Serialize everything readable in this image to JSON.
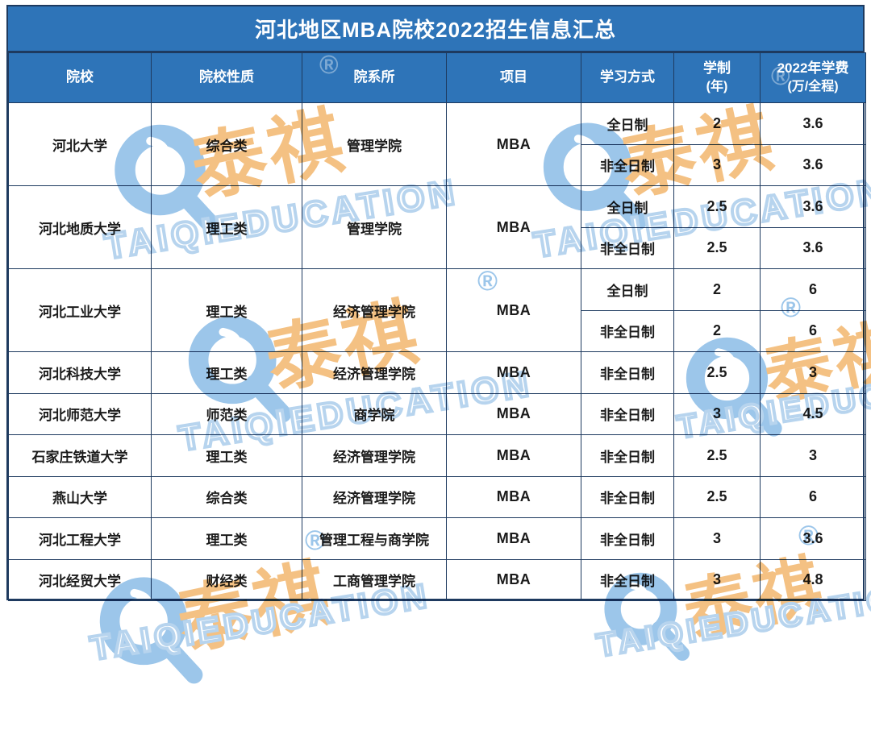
{
  "title": "河北地区MBA院校2022招生信息汇总",
  "watermark": {
    "cn": "泰祺",
    "en": "TAIQIEDUCATION",
    "reg": "®"
  },
  "colors": {
    "header_blue": "#2E74B8",
    "border_dark": "#1E3A5F",
    "body_text": "#1B1B1B",
    "watermark_orange": "#F4C183",
    "watermark_blue": "#9CC6EA",
    "watermark_en_stroke": "#B7D4EE"
  },
  "table": {
    "columns": [
      {
        "label": "院校"
      },
      {
        "label": "院校性质"
      },
      {
        "label": "院系所"
      },
      {
        "label": "项目"
      },
      {
        "label": "学习方式"
      },
      {
        "label": "学制",
        "sub": "(年)"
      },
      {
        "label": "2022年学费",
        "sub": "(万/全程)"
      }
    ],
    "schools": [
      {
        "name": "河北大学",
        "type": "综合类",
        "dept": "管理学院",
        "program": "MBA",
        "modes": [
          {
            "mode": "全日制",
            "years": "2",
            "fee": "3.6"
          },
          {
            "mode": "非全日制",
            "years": "3",
            "fee": "3.6"
          }
        ]
      },
      {
        "name": "河北地质大学",
        "type": "理工类",
        "dept": "管理学院",
        "program": "MBA",
        "modes": [
          {
            "mode": "全日制",
            "years": "2.5",
            "fee": "3.6"
          },
          {
            "mode": "非全日制",
            "years": "2.5",
            "fee": "3.6"
          }
        ]
      },
      {
        "name": "河北工业大学",
        "type": "理工类",
        "dept": "经济管理学院",
        "program": "MBA",
        "modes": [
          {
            "mode": "全日制",
            "years": "2",
            "fee": "6"
          },
          {
            "mode": "非全日制",
            "years": "2",
            "fee": "6"
          }
        ]
      },
      {
        "name": "河北科技大学",
        "type": "理工类",
        "dept": "经济管理学院",
        "program": "MBA",
        "modes": [
          {
            "mode": "非全日制",
            "years": "2.5",
            "fee": "3"
          }
        ]
      },
      {
        "name": "河北师范大学",
        "type": "师范类",
        "dept": "商学院",
        "program": "MBA",
        "modes": [
          {
            "mode": "非全日制",
            "years": "3",
            "fee": "4.5"
          }
        ]
      },
      {
        "name": "石家庄铁道大学",
        "type": "理工类",
        "dept": "经济管理学院",
        "program": "MBA",
        "modes": [
          {
            "mode": "非全日制",
            "years": "2.5",
            "fee": "3"
          }
        ]
      },
      {
        "name": "燕山大学",
        "type": "综合类",
        "dept": "经济管理学院",
        "program": "MBA",
        "modes": [
          {
            "mode": "非全日制",
            "years": "2.5",
            "fee": "6"
          }
        ]
      },
      {
        "name": "河北工程大学",
        "type": "理工类",
        "dept": "管理工程与商学院",
        "program": "MBA",
        "modes": [
          {
            "mode": "非全日制",
            "years": "3",
            "fee": "3.6"
          }
        ]
      },
      {
        "name": "河北经贸大学",
        "type": "财经类",
        "dept": "工商管理学院",
        "program": "MBA",
        "modes": [
          {
            "mode": "非全日制",
            "years": "3",
            "fee": "4.8"
          }
        ]
      }
    ]
  },
  "chart_data": {
    "type": "table",
    "title": "河北地区MBA院校2022招生信息汇总",
    "columns": [
      "院校",
      "院校性质",
      "院系所",
      "项目",
      "学习方式",
      "学制(年)",
      "2022年学费(万/全程)"
    ],
    "rows": [
      [
        "河北大学",
        "综合类",
        "管理学院",
        "MBA",
        "全日制",
        "2",
        "3.6"
      ],
      [
        "河北大学",
        "综合类",
        "管理学院",
        "MBA",
        "非全日制",
        "3",
        "3.6"
      ],
      [
        "河北地质大学",
        "理工类",
        "管理学院",
        "MBA",
        "全日制",
        "2.5",
        "3.6"
      ],
      [
        "河北地质大学",
        "理工类",
        "管理学院",
        "MBA",
        "非全日制",
        "2.5",
        "3.6"
      ],
      [
        "河北工业大学",
        "理工类",
        "经济管理学院",
        "MBA",
        "全日制",
        "2",
        "6"
      ],
      [
        "河北工业大学",
        "理工类",
        "经济管理学院",
        "MBA",
        "非全日制",
        "2",
        "6"
      ],
      [
        "河北科技大学",
        "理工类",
        "经济管理学院",
        "MBA",
        "非全日制",
        "2.5",
        "3"
      ],
      [
        "河北师范大学",
        "师范类",
        "商学院",
        "MBA",
        "非全日制",
        "3",
        "4.5"
      ],
      [
        "石家庄铁道大学",
        "理工类",
        "经济管理学院",
        "MBA",
        "非全日制",
        "2.5",
        "3"
      ],
      [
        "燕山大学",
        "综合类",
        "经济管理学院",
        "MBA",
        "非全日制",
        "2.5",
        "6"
      ],
      [
        "河北工程大学",
        "理工类",
        "管理工程与商学院",
        "MBA",
        "非全日制",
        "3",
        "3.6"
      ],
      [
        "河北经贸大学",
        "财经类",
        "工商管理学院",
        "MBA",
        "非全日制",
        "3",
        "4.8"
      ]
    ]
  }
}
